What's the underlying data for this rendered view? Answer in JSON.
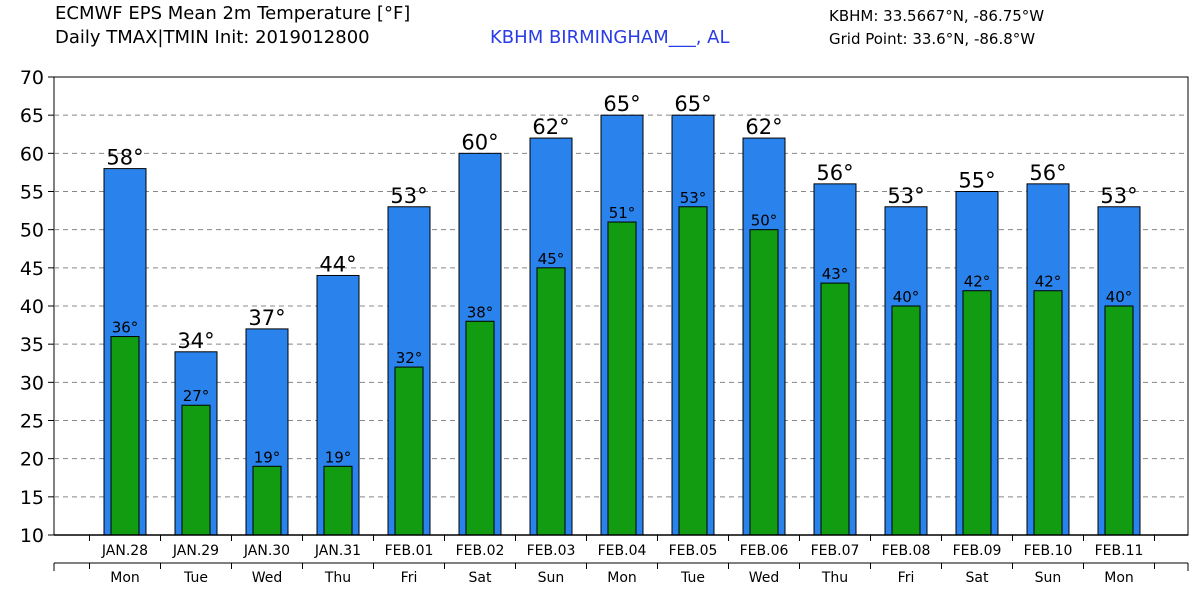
{
  "header": {
    "title_line1": "ECMWF EPS Mean 2m Temperature [°F]",
    "title_line2": "Daily TMAX|TMIN Init: 2019012800",
    "station": "KBHM BIRMINGHAM___, AL",
    "station_coords": "KBHM: 33.5667°N, -86.75°W",
    "grid_point": "Grid Point: 33.6°N, -86.8°W"
  },
  "colors": {
    "tmax": "#2a83ec",
    "tmin": "#119c11",
    "grid": "#888888"
  },
  "chart_data": {
    "type": "bar",
    "title": "ECMWF EPS Mean 2m Temperature [°F]",
    "categories": [
      "JAN.28",
      "JAN.29",
      "JAN.30",
      "JAN.31",
      "FEB.01",
      "FEB.02",
      "FEB.03",
      "FEB.04",
      "FEB.05",
      "FEB.06",
      "FEB.07",
      "FEB.08",
      "FEB.09",
      "FEB.10",
      "FEB.11"
    ],
    "weekdays": [
      "Mon",
      "Tue",
      "Wed",
      "Thu",
      "Fri",
      "Sat",
      "Sun",
      "Mon",
      "Tue",
      "Wed",
      "Thu",
      "Fri",
      "Sat",
      "Sun",
      "Mon"
    ],
    "series": [
      {
        "name": "TMAX",
        "values": [
          58,
          34,
          37,
          44,
          53,
          60,
          62,
          65,
          65,
          62,
          56,
          53,
          55,
          56,
          53
        ],
        "labels": [
          "58°",
          "34°",
          "37°",
          "44°",
          "53°",
          "60°",
          "62°",
          "65°",
          "65°",
          "62°",
          "56°",
          "53°",
          "55°",
          "56°",
          "53°"
        ]
      },
      {
        "name": "TMIN",
        "values": [
          36,
          27,
          19,
          19,
          32,
          38,
          45,
          51,
          53,
          50,
          43,
          40,
          42,
          42,
          40
        ],
        "labels": [
          "36°",
          "27°",
          "19°",
          "19°",
          "32°",
          "38°",
          "45°",
          "51°",
          "53°",
          "50°",
          "43°",
          "40°",
          "42°",
          "42°",
          "40°"
        ]
      }
    ],
    "ylim": [
      10,
      70
    ],
    "yticks": [
      10,
      15,
      20,
      25,
      30,
      35,
      40,
      45,
      50,
      55,
      60,
      65,
      70
    ],
    "grid": true,
    "grid_style": "dashed"
  }
}
